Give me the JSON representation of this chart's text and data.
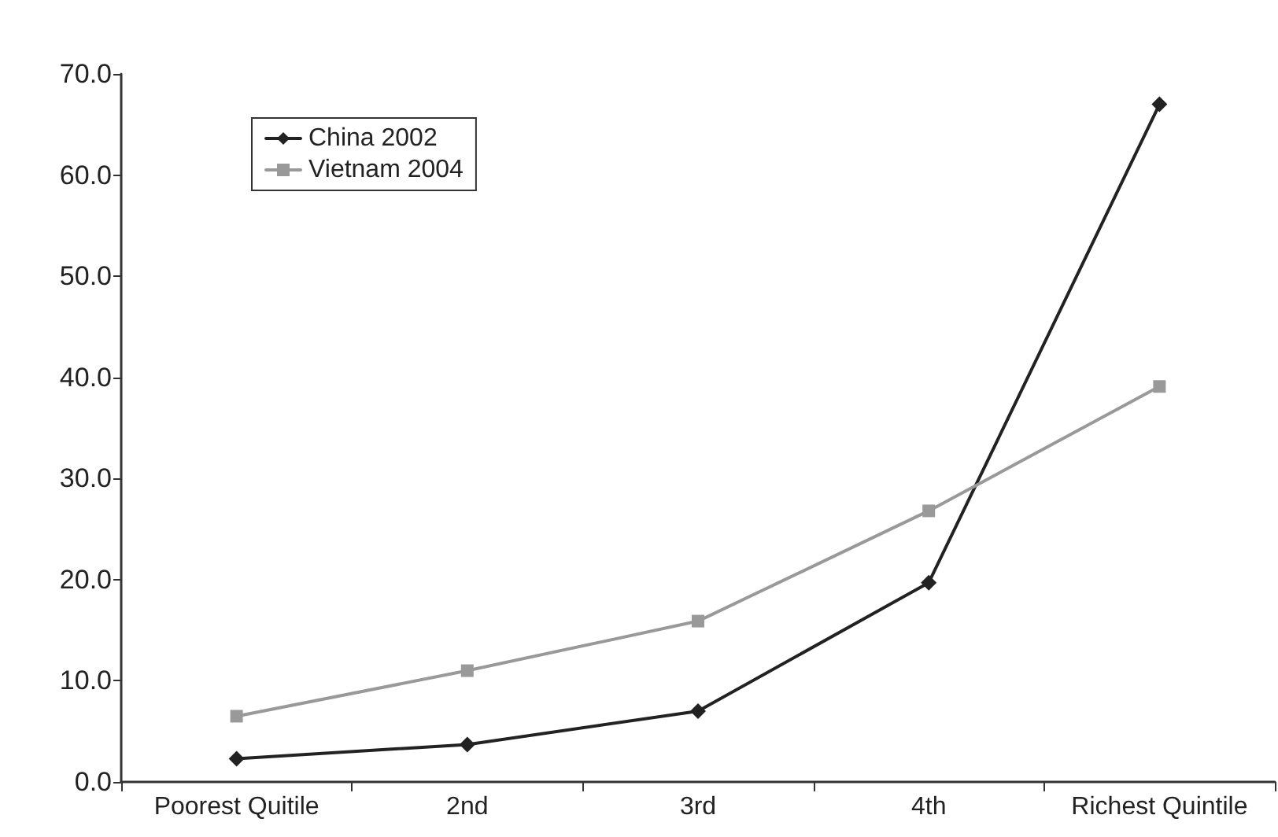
{
  "chart_data": {
    "type": "line",
    "categories": [
      "Poorest Quitile",
      "2nd",
      "3rd",
      "4th",
      "Richest Quintile"
    ],
    "series": [
      {
        "name": "China 2002",
        "color": "#222222",
        "marker": "diamond",
        "values": [
          2.3,
          3.7,
          7.0,
          19.7,
          67.0
        ]
      },
      {
        "name": "Vietnam 2004",
        "color": "#999999",
        "marker": "square",
        "values": [
          6.5,
          11.0,
          15.9,
          26.8,
          39.1
        ]
      }
    ],
    "ylim": [
      0,
      70
    ],
    "yticks": [
      {
        "value": 0,
        "label": "0.0"
      },
      {
        "value": 10,
        "label": "10.0"
      },
      {
        "value": 20,
        "label": "20.0"
      },
      {
        "value": 30,
        "label": "30.0"
      },
      {
        "value": 40,
        "label": "40.0"
      },
      {
        "value": 50,
        "label": "50.0"
      },
      {
        "value": 60,
        "label": "60.0"
      },
      {
        "value": 70,
        "label": "70.0"
      }
    ],
    "grid": false,
    "legend": "top left",
    "line_style": "solid"
  }
}
